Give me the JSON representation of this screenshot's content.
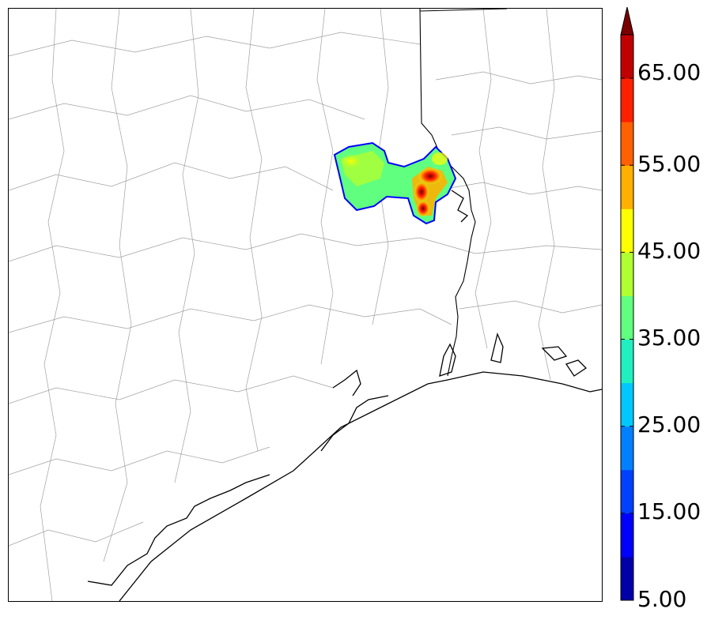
{
  "map": {
    "county_line_color": "#9a9a9a",
    "coast_line_color": "#000000",
    "field_outline_color": "#0000ff"
  },
  "colorbar": {
    "levels": [
      5,
      10,
      15,
      20,
      25,
      30,
      35,
      40,
      45,
      50,
      55,
      60,
      65,
      70
    ],
    "colors": [
      "#0000a8",
      "#0000ff",
      "#0040ff",
      "#0080ff",
      "#00c8ff",
      "#20f0c0",
      "#60ff80",
      "#b0ff30",
      "#ffff00",
      "#ffb000",
      "#ff6000",
      "#ff2000",
      "#c00000",
      "#7a0000"
    ],
    "extend": "max",
    "tick_labels": [
      "5.00",
      "15.00",
      "25.00",
      "35.00",
      "45.00",
      "55.00",
      "65.00"
    ]
  }
}
